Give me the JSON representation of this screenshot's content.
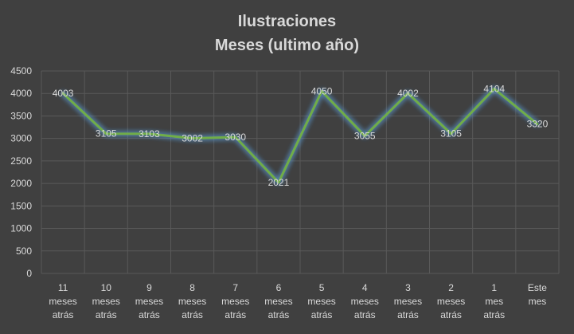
{
  "colors": {
    "background": "#404040",
    "line": "#70ad47",
    "glow": "#5b9bd5",
    "grid": "#595959",
    "text": "#d9d9d9"
  },
  "chart_data": {
    "type": "line",
    "title": "Ilustraciones",
    "subtitle": "Meses (ultimo año)",
    "xlabel": "",
    "ylabel": "",
    "ylim": [
      0,
      4500
    ],
    "yticks": [
      0,
      500,
      1000,
      1500,
      2000,
      2500,
      3000,
      3500,
      4000,
      4500
    ],
    "grid": true,
    "legend": "none",
    "categories": [
      "11 meses atrás",
      "10 meses atrás",
      "9 meses atrás",
      "8 meses atrás",
      "7 meses atrás",
      "6 meses atrás",
      "5 meses atrás",
      "4 meses atrás",
      "3 meses atrás",
      "2 meses atrás",
      "1 mes atrás",
      "Este mes"
    ],
    "series": [
      {
        "values": [
          4003,
          3105,
          3103,
          3002,
          3030,
          2021,
          4050,
          3055,
          4002,
          3105,
          4104,
          3320
        ],
        "data_labels": true
      }
    ]
  }
}
